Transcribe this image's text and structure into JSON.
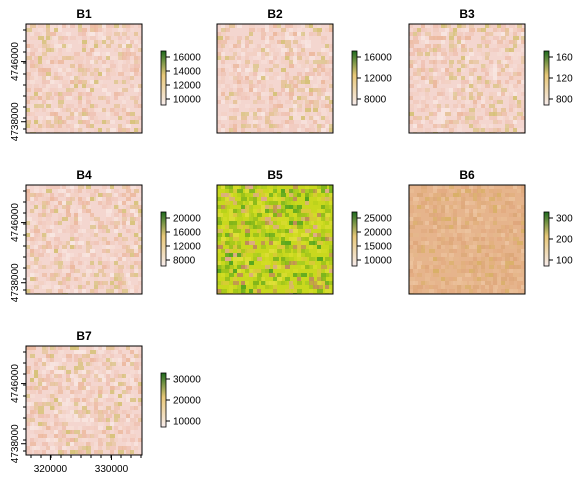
{
  "chart_data": {
    "type": "heatmap",
    "x_ticks": [
      320000,
      330000
    ],
    "y_ticks": [
      4738000,
      4746000
    ],
    "x_tick_labels": [
      "320000",
      "330000"
    ],
    "y_tick_labels": [
      "4738000",
      "4746000"
    ],
    "panels": [
      {
        "title": "B1",
        "legend_ticks": [
          "16000",
          "14000",
          "12000",
          "10000"
        ],
        "palette": "low"
      },
      {
        "title": "B2",
        "legend_ticks": [
          "16000",
          "12000",
          "8000"
        ],
        "palette": "low"
      },
      {
        "title": "B3",
        "legend_ticks": [
          "160",
          "120",
          "800"
        ],
        "palette": "low"
      },
      {
        "title": "B4",
        "legend_ticks": [
          "20000",
          "16000",
          "12000",
          "8000"
        ],
        "palette": "low"
      },
      {
        "title": "B5",
        "legend_ticks": [
          "25000",
          "20000",
          "15000",
          "10000"
        ],
        "palette": "high"
      },
      {
        "title": "B6",
        "legend_ticks": [
          "300",
          "200",
          "100"
        ],
        "palette": "mid"
      },
      {
        "title": "B7",
        "legend_ticks": [
          "30000",
          "20000",
          "10000"
        ],
        "palette": "low"
      }
    ],
    "colors": {
      "frame": "#000000",
      "legend_top": "#1e6b1e",
      "legend_mid": "#e8c878",
      "legend_low": "#f7ecec"
    }
  }
}
